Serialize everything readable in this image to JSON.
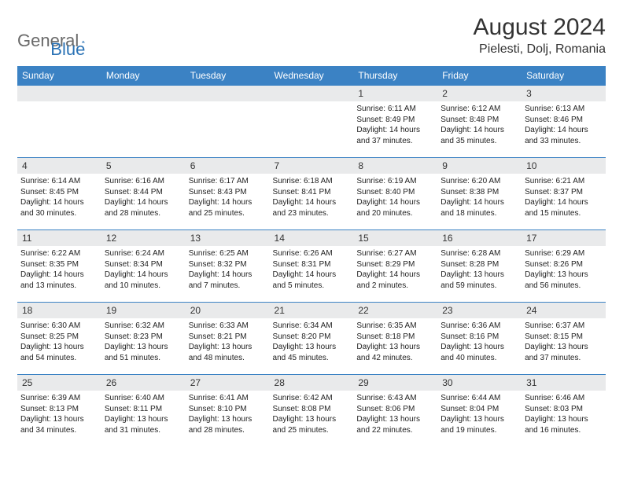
{
  "brand": {
    "part1": "General",
    "part2": "Blue"
  },
  "title": "August 2024",
  "location": "Pielesti, Dolj, Romania",
  "colors": {
    "header_bg": "#3b82c4",
    "header_text": "#ffffff",
    "daynum_bg": "#e9eaeb",
    "border": "#3b82c4",
    "text": "#222222",
    "brand_gray": "#6a6a6a",
    "brand_blue": "#2a72b5"
  },
  "day_headers": [
    "Sunday",
    "Monday",
    "Tuesday",
    "Wednesday",
    "Thursday",
    "Friday",
    "Saturday"
  ],
  "weeks": [
    [
      null,
      null,
      null,
      null,
      {
        "n": "1",
        "sr": "6:11 AM",
        "ss": "8:49 PM",
        "dl": "14 hours and 37 minutes."
      },
      {
        "n": "2",
        "sr": "6:12 AM",
        "ss": "8:48 PM",
        "dl": "14 hours and 35 minutes."
      },
      {
        "n": "3",
        "sr": "6:13 AM",
        "ss": "8:46 PM",
        "dl": "14 hours and 33 minutes."
      }
    ],
    [
      {
        "n": "4",
        "sr": "6:14 AM",
        "ss": "8:45 PM",
        "dl": "14 hours and 30 minutes."
      },
      {
        "n": "5",
        "sr": "6:16 AM",
        "ss": "8:44 PM",
        "dl": "14 hours and 28 minutes."
      },
      {
        "n": "6",
        "sr": "6:17 AM",
        "ss": "8:43 PM",
        "dl": "14 hours and 25 minutes."
      },
      {
        "n": "7",
        "sr": "6:18 AM",
        "ss": "8:41 PM",
        "dl": "14 hours and 23 minutes."
      },
      {
        "n": "8",
        "sr": "6:19 AM",
        "ss": "8:40 PM",
        "dl": "14 hours and 20 minutes."
      },
      {
        "n": "9",
        "sr": "6:20 AM",
        "ss": "8:38 PM",
        "dl": "14 hours and 18 minutes."
      },
      {
        "n": "10",
        "sr": "6:21 AM",
        "ss": "8:37 PM",
        "dl": "14 hours and 15 minutes."
      }
    ],
    [
      {
        "n": "11",
        "sr": "6:22 AM",
        "ss": "8:35 PM",
        "dl": "14 hours and 13 minutes."
      },
      {
        "n": "12",
        "sr": "6:24 AM",
        "ss": "8:34 PM",
        "dl": "14 hours and 10 minutes."
      },
      {
        "n": "13",
        "sr": "6:25 AM",
        "ss": "8:32 PM",
        "dl": "14 hours and 7 minutes."
      },
      {
        "n": "14",
        "sr": "6:26 AM",
        "ss": "8:31 PM",
        "dl": "14 hours and 5 minutes."
      },
      {
        "n": "15",
        "sr": "6:27 AM",
        "ss": "8:29 PM",
        "dl": "14 hours and 2 minutes."
      },
      {
        "n": "16",
        "sr": "6:28 AM",
        "ss": "8:28 PM",
        "dl": "13 hours and 59 minutes."
      },
      {
        "n": "17",
        "sr": "6:29 AM",
        "ss": "8:26 PM",
        "dl": "13 hours and 56 minutes."
      }
    ],
    [
      {
        "n": "18",
        "sr": "6:30 AM",
        "ss": "8:25 PM",
        "dl": "13 hours and 54 minutes."
      },
      {
        "n": "19",
        "sr": "6:32 AM",
        "ss": "8:23 PM",
        "dl": "13 hours and 51 minutes."
      },
      {
        "n": "20",
        "sr": "6:33 AM",
        "ss": "8:21 PM",
        "dl": "13 hours and 48 minutes."
      },
      {
        "n": "21",
        "sr": "6:34 AM",
        "ss": "8:20 PM",
        "dl": "13 hours and 45 minutes."
      },
      {
        "n": "22",
        "sr": "6:35 AM",
        "ss": "8:18 PM",
        "dl": "13 hours and 42 minutes."
      },
      {
        "n": "23",
        "sr": "6:36 AM",
        "ss": "8:16 PM",
        "dl": "13 hours and 40 minutes."
      },
      {
        "n": "24",
        "sr": "6:37 AM",
        "ss": "8:15 PM",
        "dl": "13 hours and 37 minutes."
      }
    ],
    [
      {
        "n": "25",
        "sr": "6:39 AM",
        "ss": "8:13 PM",
        "dl": "13 hours and 34 minutes."
      },
      {
        "n": "26",
        "sr": "6:40 AM",
        "ss": "8:11 PM",
        "dl": "13 hours and 31 minutes."
      },
      {
        "n": "27",
        "sr": "6:41 AM",
        "ss": "8:10 PM",
        "dl": "13 hours and 28 minutes."
      },
      {
        "n": "28",
        "sr": "6:42 AM",
        "ss": "8:08 PM",
        "dl": "13 hours and 25 minutes."
      },
      {
        "n": "29",
        "sr": "6:43 AM",
        "ss": "8:06 PM",
        "dl": "13 hours and 22 minutes."
      },
      {
        "n": "30",
        "sr": "6:44 AM",
        "ss": "8:04 PM",
        "dl": "13 hours and 19 minutes."
      },
      {
        "n": "31",
        "sr": "6:46 AM",
        "ss": "8:03 PM",
        "dl": "13 hours and 16 minutes."
      }
    ]
  ],
  "labels": {
    "sunrise": "Sunrise: ",
    "sunset": "Sunset: ",
    "daylight": "Daylight: "
  }
}
